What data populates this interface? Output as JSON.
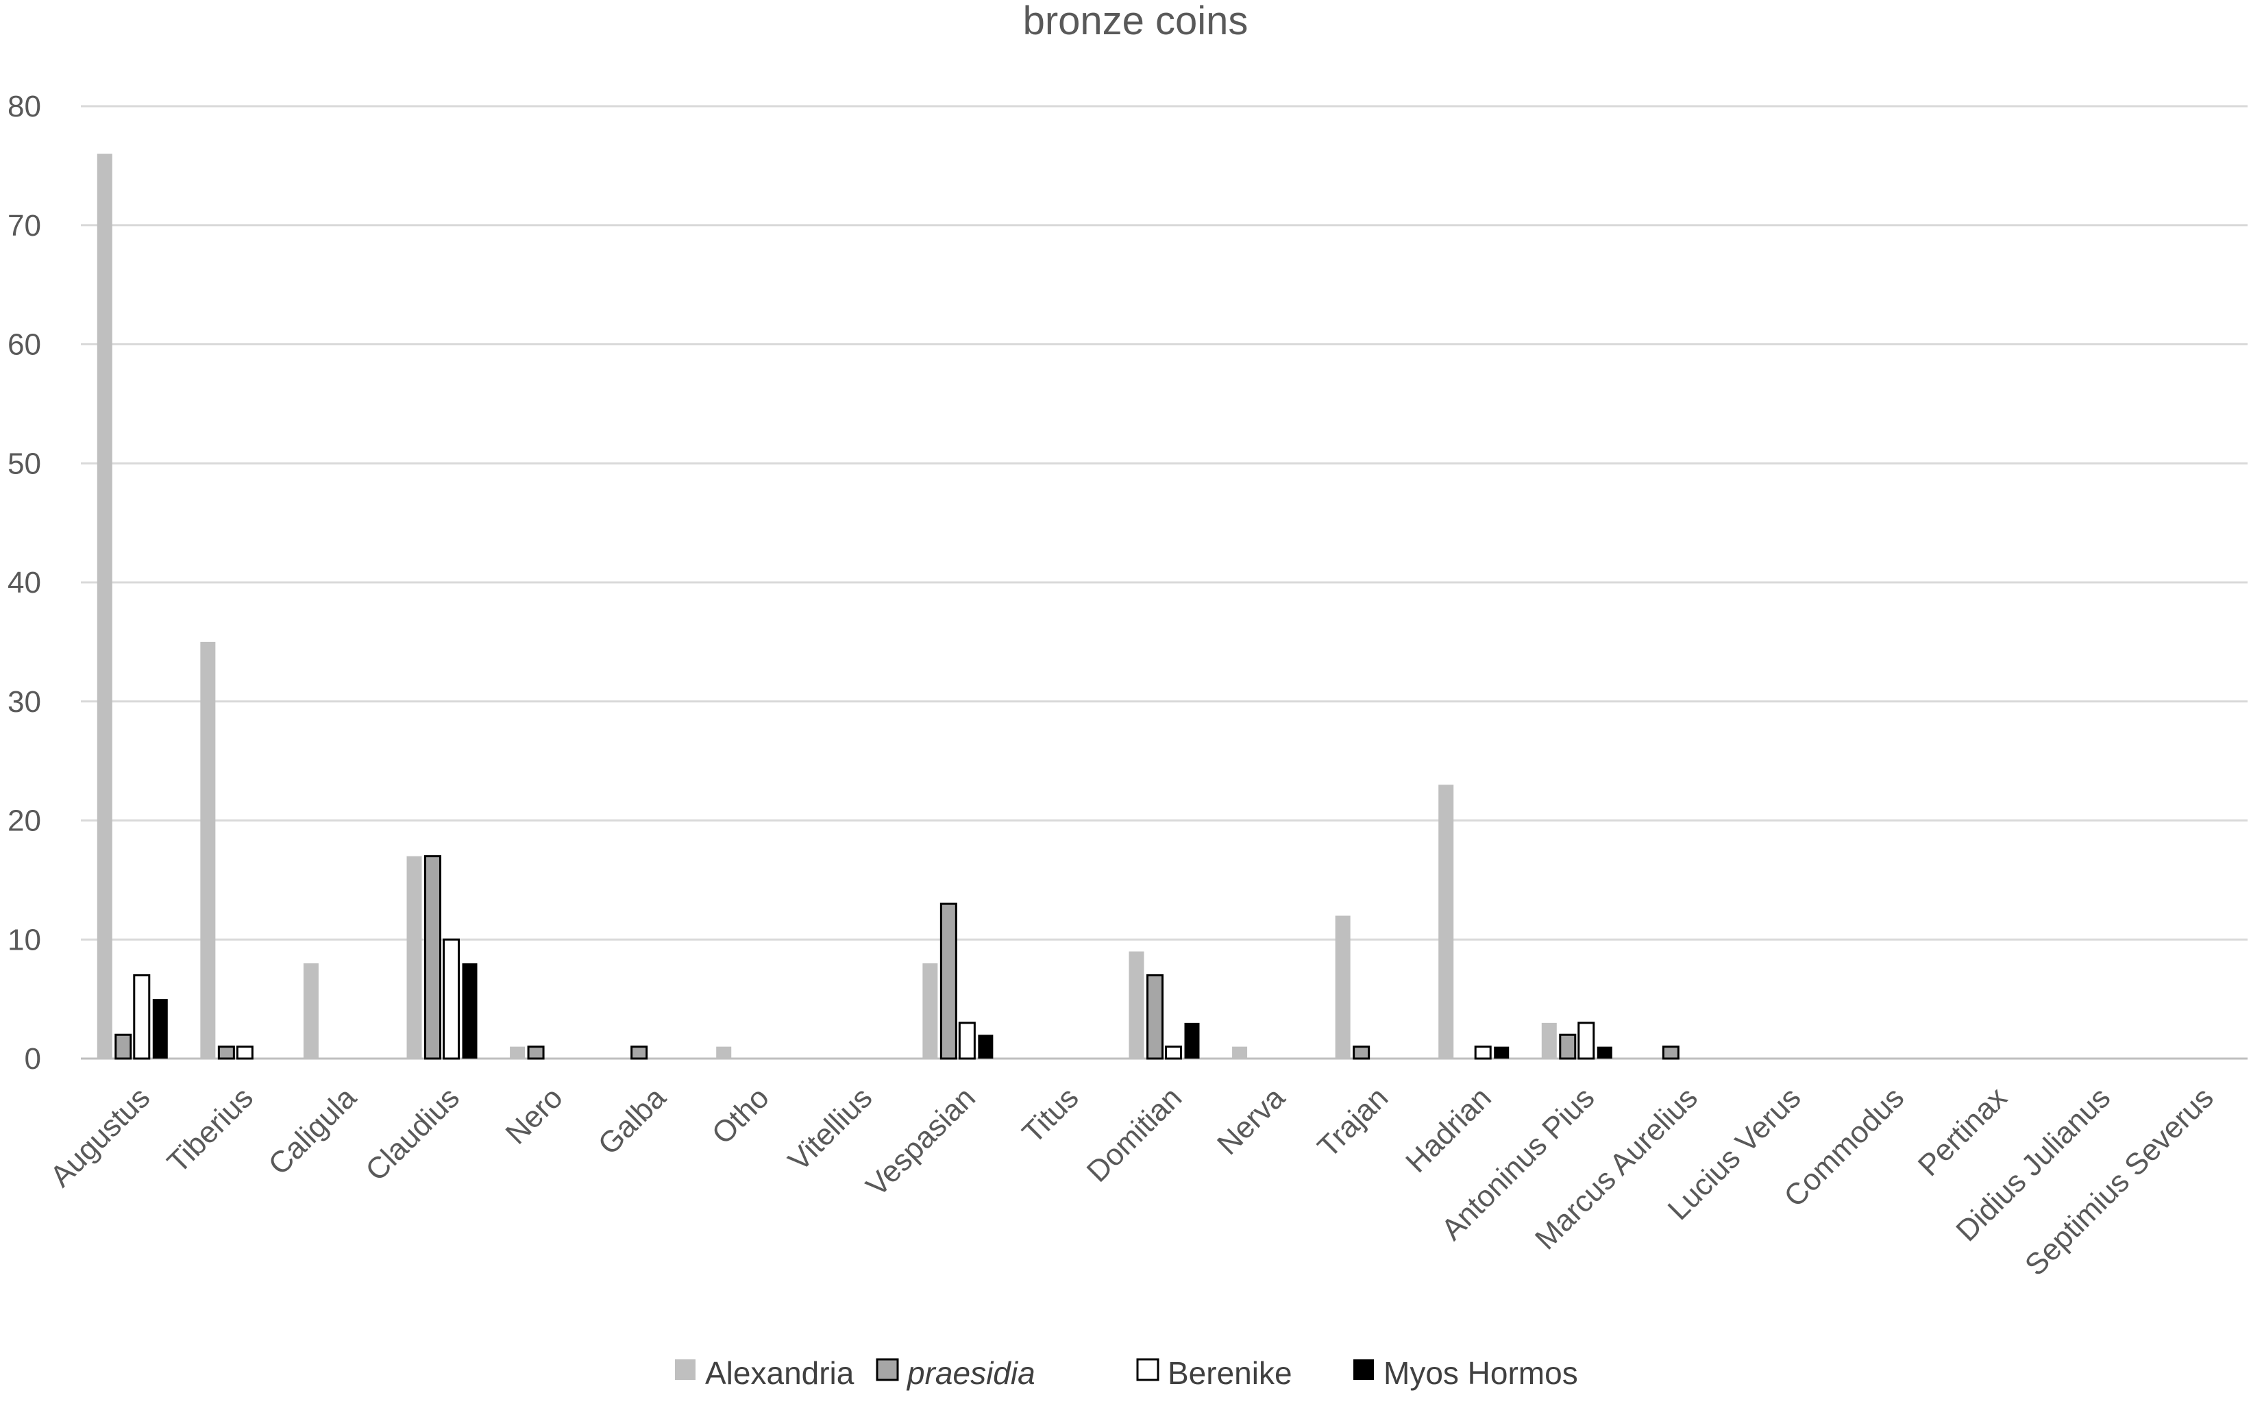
{
  "chart_data": {
    "type": "bar",
    "title": "bronze coins",
    "xlabel": "",
    "ylabel": "",
    "ylim": [
      0,
      80
    ],
    "yticks": [
      0,
      10,
      20,
      30,
      40,
      50,
      60,
      70,
      80
    ],
    "grid": true,
    "legend_position": "bottom",
    "categories": [
      "Augustus",
      "Tiberius",
      "Caligula",
      "Claudius",
      "Nero",
      "Galba",
      "Otho",
      "Vitellius",
      "Vespasian",
      "Titus",
      "Domitian",
      "Nerva",
      "Trajan",
      "Hadrian",
      "Antoninus Pius",
      "Marcus Aurelius",
      "Lucius Verus",
      "Commodus",
      "Pertinax",
      "Didius Julianus",
      "Septimius Severus"
    ],
    "series": [
      {
        "name": "Alexandria",
        "italic": false,
        "fill": "#bfbfbf",
        "stroke": "#bfbfbf",
        "values": [
          76,
          35,
          8,
          17,
          1,
          0,
          1,
          0,
          8,
          0,
          9,
          1,
          12,
          23,
          3,
          0,
          0,
          0,
          0,
          0,
          0
        ]
      },
      {
        "name": "praesidia",
        "italic": true,
        "fill": "#a6a6a6",
        "stroke": "#000000",
        "values": [
          2,
          1,
          0,
          17,
          1,
          1,
          0,
          0,
          13,
          0,
          7,
          0,
          1,
          0,
          2,
          1,
          0,
          0,
          0,
          0,
          0
        ]
      },
      {
        "name": "Berenike",
        "italic": false,
        "fill": "#ffffff",
        "stroke": "#000000",
        "values": [
          7,
          1,
          0,
          10,
          0,
          0,
          0,
          0,
          3,
          0,
          1,
          0,
          0,
          1,
          3,
          0,
          0,
          0,
          0,
          0,
          0
        ]
      },
      {
        "name": "Myos Hormos",
        "italic": false,
        "fill": "#000000",
        "stroke": "#000000",
        "values": [
          5,
          0,
          0,
          8,
          0,
          0,
          0,
          0,
          2,
          0,
          3,
          0,
          0,
          1,
          1,
          0,
          0,
          0,
          0,
          0,
          0
        ]
      }
    ],
    "colors": {
      "grid": "#d9d9d9",
      "axis": "#bfbfbf",
      "text": "#595959"
    }
  }
}
